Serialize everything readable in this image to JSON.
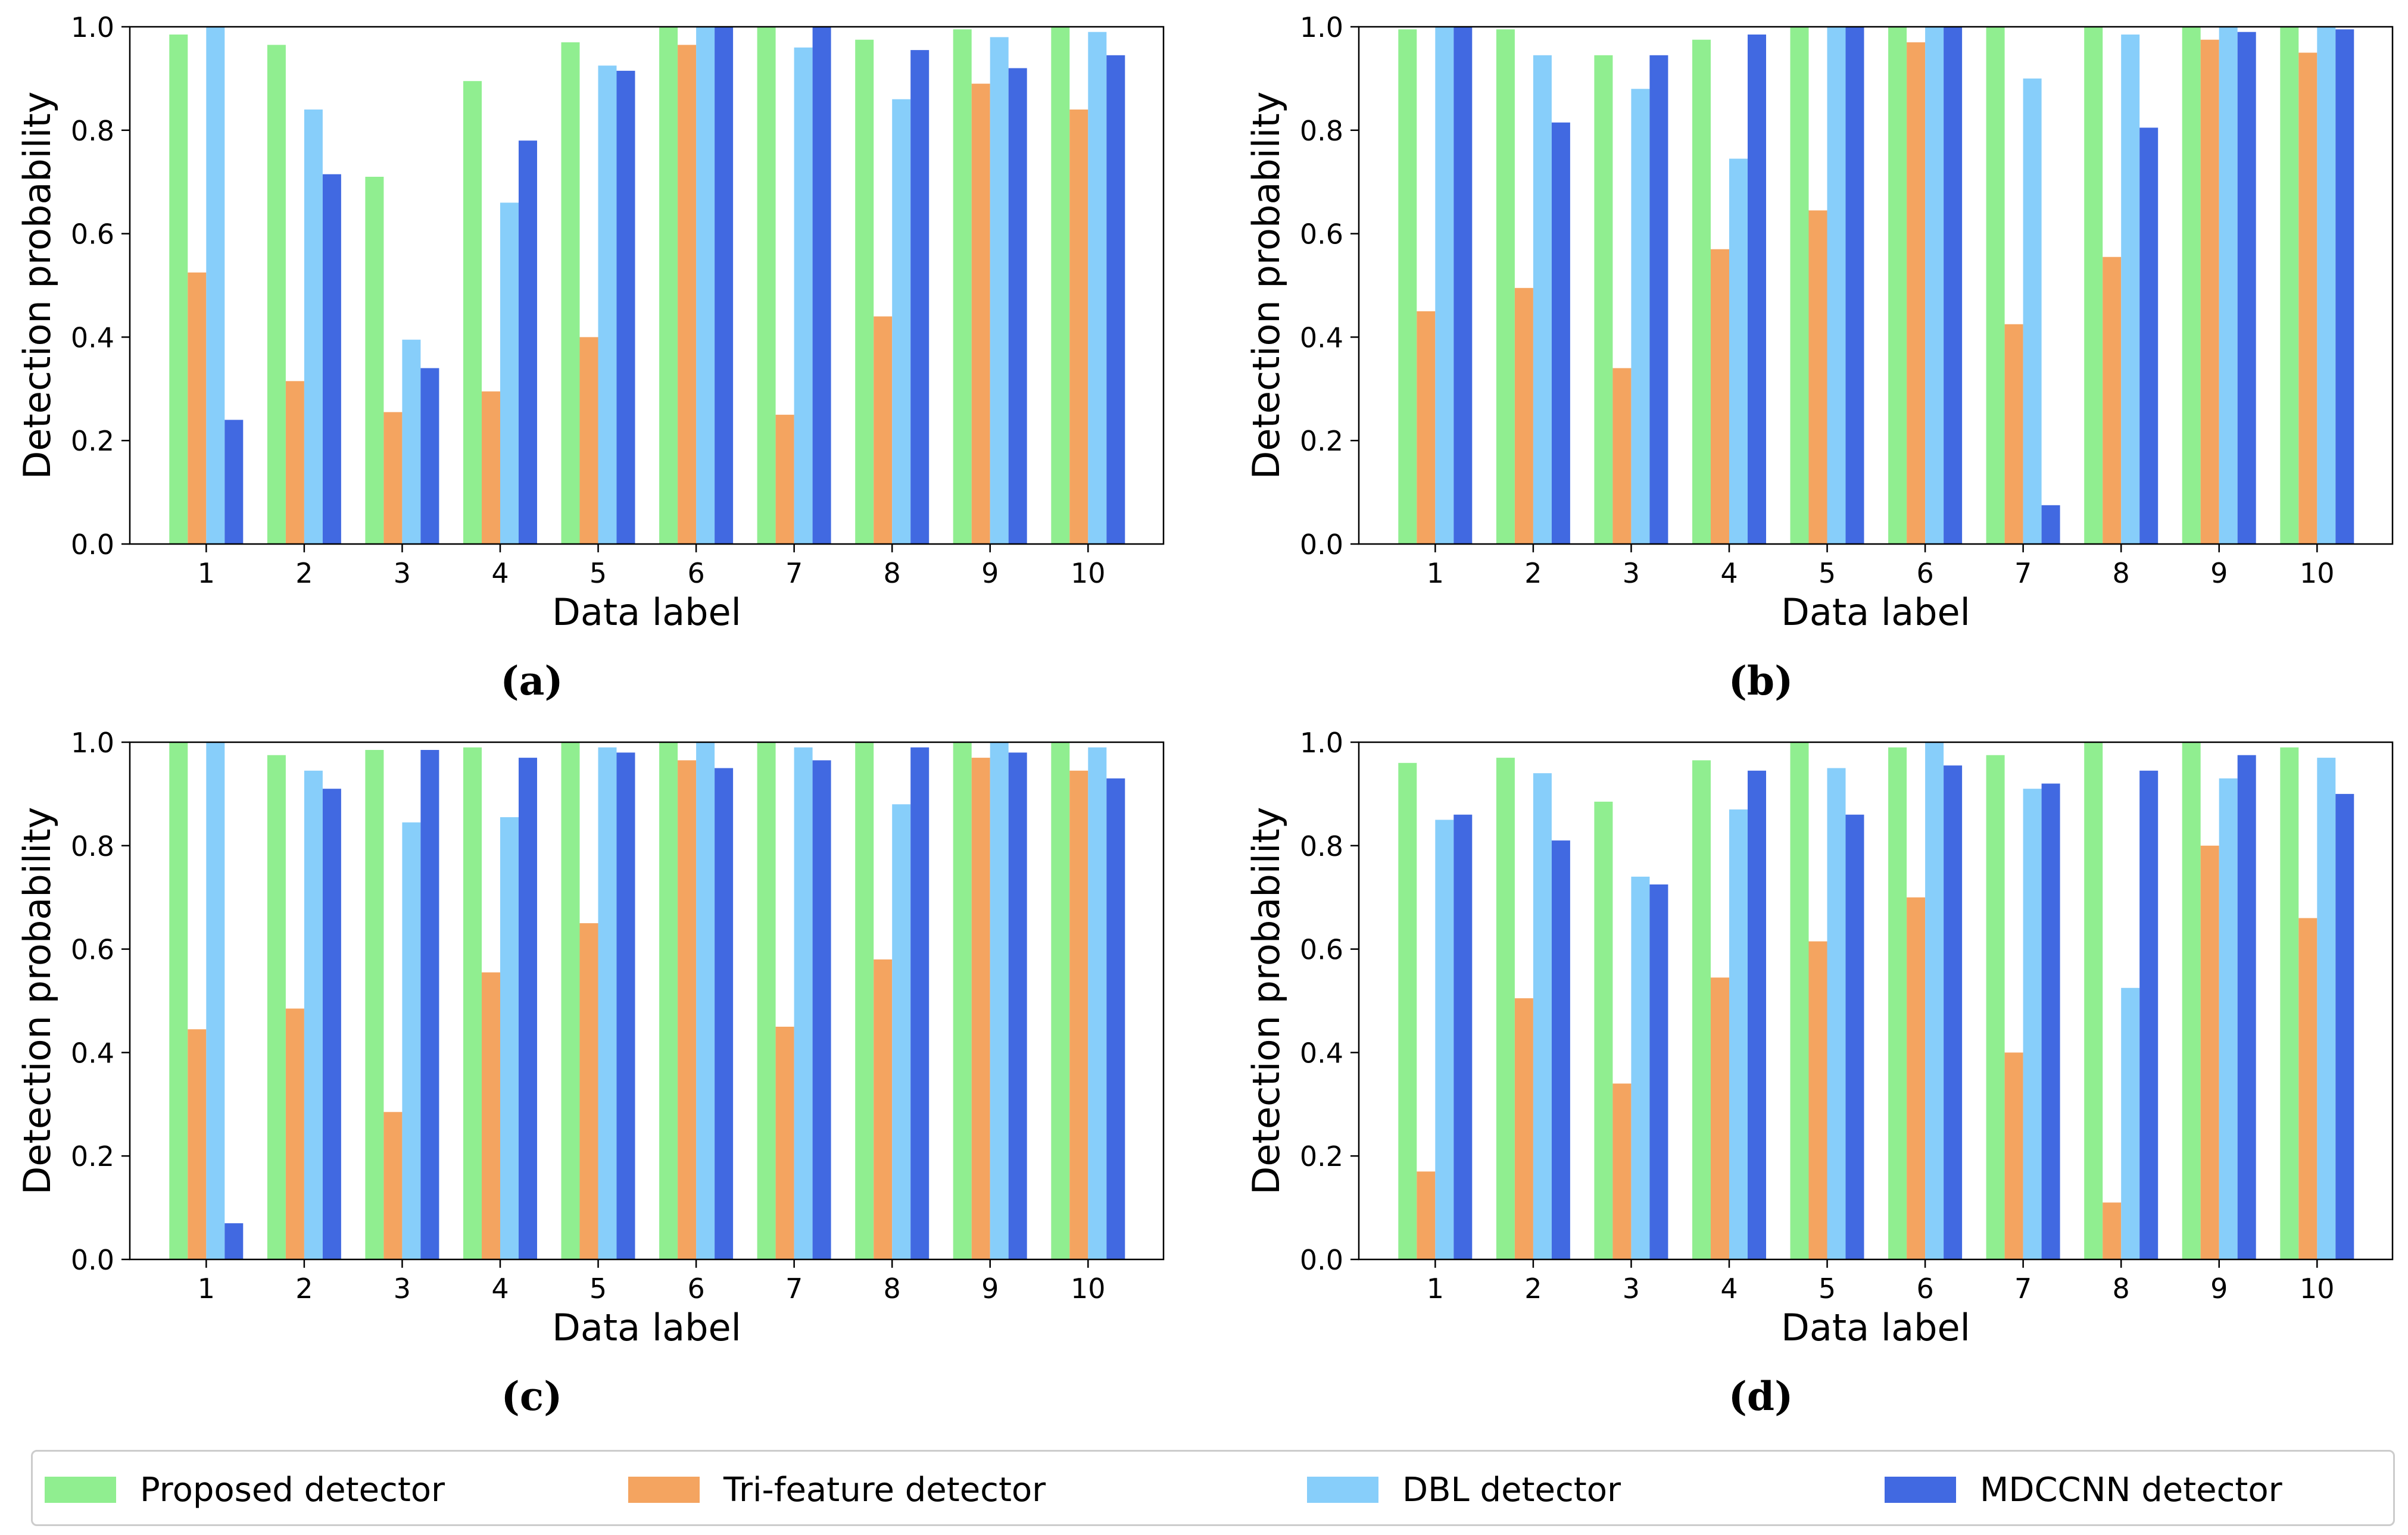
{
  "colors": {
    "proposed": "#90ee90",
    "trifeature": "#f4a460",
    "dbl": "#87cefa",
    "mdccnn": "#4169e1"
  },
  "legend": {
    "items": [
      {
        "key": "proposed",
        "label": "Proposed detector"
      },
      {
        "key": "trifeature",
        "label": "Tri-feature detector"
      },
      {
        "key": "dbl",
        "label": "DBL detector"
      },
      {
        "key": "mdccnn",
        "label": "MDCCNN detector"
      }
    ]
  },
  "chart_data": [
    {
      "panel": "a",
      "caption": "(a)",
      "type": "bar",
      "xlabel": "Data label",
      "ylabel": "Detection probability",
      "ylim": [
        0,
        1.0
      ],
      "yticks": [
        "0.0",
        "0.2",
        "0.4",
        "0.6",
        "0.8",
        "1.0"
      ],
      "categories": [
        "1",
        "2",
        "3",
        "4",
        "5",
        "6",
        "7",
        "8",
        "9",
        "10"
      ],
      "series": [
        {
          "name": "Proposed detector",
          "key": "proposed",
          "values": [
            0.985,
            0.965,
            0.71,
            0.895,
            0.97,
            1.0,
            1.0,
            0.975,
            0.995,
            1.0
          ]
        },
        {
          "name": "Tri-feature detector",
          "key": "trifeature",
          "values": [
            0.525,
            0.315,
            0.255,
            0.295,
            0.4,
            0.965,
            0.25,
            0.44,
            0.89,
            0.84
          ]
        },
        {
          "name": "DBL detector",
          "key": "dbl",
          "values": [
            1.0,
            0.84,
            0.395,
            0.66,
            0.925,
            1.0,
            0.96,
            0.86,
            0.98,
            0.99
          ]
        },
        {
          "name": "MDCCNN detector",
          "key": "mdccnn",
          "values": [
            0.24,
            0.715,
            0.34,
            0.78,
            0.915,
            1.0,
            1.0,
            0.955,
            0.92,
            0.945
          ]
        }
      ]
    },
    {
      "panel": "b",
      "caption": "(b)",
      "type": "bar",
      "xlabel": "Data label",
      "ylabel": "Detection probability",
      "ylim": [
        0,
        1.0
      ],
      "yticks": [
        "0.0",
        "0.2",
        "0.4",
        "0.6",
        "0.8",
        "1.0"
      ],
      "categories": [
        "1",
        "2",
        "3",
        "4",
        "5",
        "6",
        "7",
        "8",
        "9",
        "10"
      ],
      "series": [
        {
          "name": "Proposed detector",
          "key": "proposed",
          "values": [
            0.995,
            0.995,
            0.945,
            0.975,
            1.0,
            1.0,
            1.0,
            1.0,
            1.0,
            1.0
          ]
        },
        {
          "name": "Tri-feature detector",
          "key": "trifeature",
          "values": [
            0.45,
            0.495,
            0.34,
            0.57,
            0.645,
            0.97,
            0.425,
            0.555,
            0.975,
            0.95
          ]
        },
        {
          "name": "DBL detector",
          "key": "dbl",
          "values": [
            1.0,
            0.945,
            0.88,
            0.745,
            1.0,
            1.0,
            0.9,
            0.985,
            1.0,
            1.0
          ]
        },
        {
          "name": "MDCCNN detector",
          "key": "mdccnn",
          "values": [
            1.0,
            0.815,
            0.945,
            0.985,
            1.0,
            1.0,
            0.075,
            0.805,
            0.99,
            0.995
          ]
        }
      ]
    },
    {
      "panel": "c",
      "caption": "(c)",
      "type": "bar",
      "xlabel": "Data label",
      "ylabel": "Detection probability",
      "ylim": [
        0,
        1.0
      ],
      "yticks": [
        "0.0",
        "0.2",
        "0.4",
        "0.6",
        "0.8",
        "1.0"
      ],
      "categories": [
        "1",
        "2",
        "3",
        "4",
        "5",
        "6",
        "7",
        "8",
        "9",
        "10"
      ],
      "series": [
        {
          "name": "Proposed detector",
          "key": "proposed",
          "values": [
            1.0,
            0.975,
            0.985,
            0.99,
            1.0,
            1.0,
            1.0,
            1.0,
            1.0,
            1.0
          ]
        },
        {
          "name": "Tri-feature detector",
          "key": "trifeature",
          "values": [
            0.445,
            0.485,
            0.285,
            0.555,
            0.65,
            0.965,
            0.45,
            0.58,
            0.97,
            0.945
          ]
        },
        {
          "name": "DBL detector",
          "key": "dbl",
          "values": [
            1.0,
            0.945,
            0.845,
            0.855,
            0.99,
            1.0,
            0.99,
            0.88,
            1.0,
            0.99
          ]
        },
        {
          "name": "MDCCNN detector",
          "key": "mdccnn",
          "values": [
            0.07,
            0.91,
            0.985,
            0.97,
            0.98,
            0.95,
            0.965,
            0.99,
            0.98,
            0.93
          ]
        }
      ]
    },
    {
      "panel": "d",
      "caption": "(d)",
      "type": "bar",
      "xlabel": "Data label",
      "ylabel": "Detection probability",
      "ylim": [
        0,
        1.0
      ],
      "yticks": [
        "0.0",
        "0.2",
        "0.4",
        "0.6",
        "0.8",
        "1.0"
      ],
      "categories": [
        "1",
        "2",
        "3",
        "4",
        "5",
        "6",
        "7",
        "8",
        "9",
        "10"
      ],
      "series": [
        {
          "name": "Proposed detector",
          "key": "proposed",
          "values": [
            0.96,
            0.97,
            0.885,
            0.965,
            1.0,
            0.99,
            0.975,
            1.0,
            1.0,
            0.99
          ]
        },
        {
          "name": "Tri-feature detector",
          "key": "trifeature",
          "values": [
            0.17,
            0.505,
            0.34,
            0.545,
            0.615,
            0.7,
            0.4,
            0.11,
            0.8,
            0.66
          ]
        },
        {
          "name": "DBL detector",
          "key": "dbl",
          "values": [
            0.85,
            0.94,
            0.74,
            0.87,
            0.95,
            1.0,
            0.91,
            0.525,
            0.93,
            0.97
          ]
        },
        {
          "name": "MDCCNN detector",
          "key": "mdccnn",
          "values": [
            0.86,
            0.81,
            0.725,
            0.945,
            0.86,
            0.955,
            0.92,
            0.945,
            0.975,
            0.9
          ]
        }
      ]
    }
  ]
}
